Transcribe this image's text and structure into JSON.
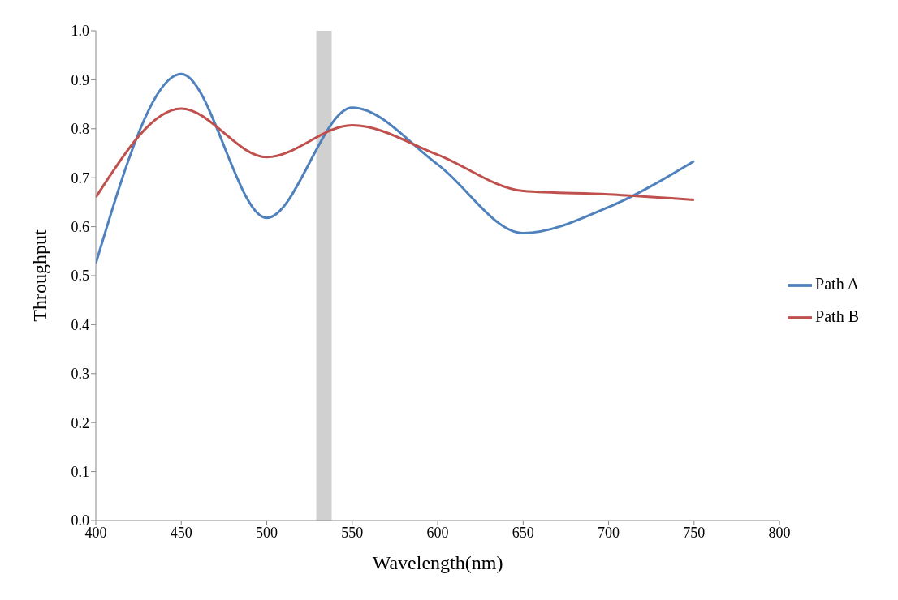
{
  "chart_data": {
    "type": "line",
    "xlabel": "Wavelength(nm)",
    "ylabel": "Throughput",
    "x": [
      400,
      450,
      500,
      550,
      600,
      650,
      700,
      750
    ],
    "series": [
      {
        "name": "Path A",
        "color": "#4f81bd",
        "values": [
          0.525,
          0.912,
          0.618,
          0.843,
          0.727,
          0.587,
          0.64,
          0.734
        ]
      },
      {
        "name": "Path B",
        "color": "#c0504d",
        "values": [
          0.66,
          0.841,
          0.742,
          0.807,
          0.747,
          0.673,
          0.666,
          0.655
        ]
      }
    ],
    "xlim": [
      400,
      800
    ],
    "xticks": [
      400,
      450,
      500,
      550,
      600,
      650,
      700,
      750,
      800
    ],
    "ylim": [
      0,
      1
    ],
    "yticks": [
      {
        "value": 0,
        "label": "0.0"
      },
      {
        "value": 0.1,
        "label": "0.1"
      },
      {
        "value": 0.2,
        "label": "0.2"
      },
      {
        "value": 0.3,
        "label": "0.3"
      },
      {
        "value": 0.4,
        "label": "0.4"
      },
      {
        "value": 0.5,
        "label": "0.5"
      },
      {
        "value": 0.6,
        "label": "0.6"
      },
      {
        "value": 0.7,
        "label": "0.7"
      },
      {
        "value": 0.8,
        "label": "0.8"
      },
      {
        "value": 0.9,
        "label": "0.9"
      },
      {
        "value": 1,
        "label": "1.0"
      }
    ],
    "bands": [
      {
        "axis": "x",
        "from": 529,
        "to": 538,
        "color": "#d0d0d0"
      }
    ],
    "grid": false,
    "legend": "right",
    "marker": "none",
    "line_style": "solid"
  }
}
